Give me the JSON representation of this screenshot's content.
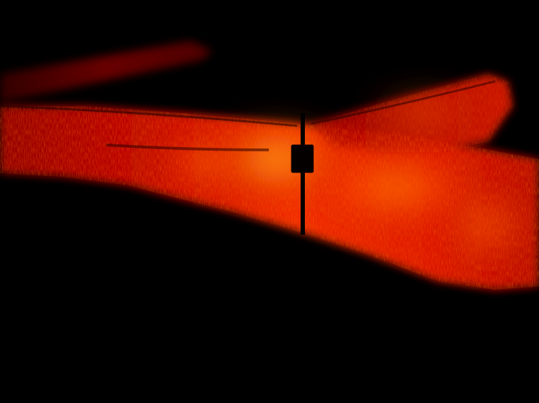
{
  "image": {
    "kind": "thermal-heatmap-photo",
    "subject": "ground-strips-with-signpost",
    "palette": {
      "background": "#000000",
      "dark_red": "#3a0000",
      "red": "#b00000",
      "bright_red": "#e01000",
      "orange": "#ff5a00",
      "yellow": "#ffd040",
      "post": "#000000"
    }
  }
}
